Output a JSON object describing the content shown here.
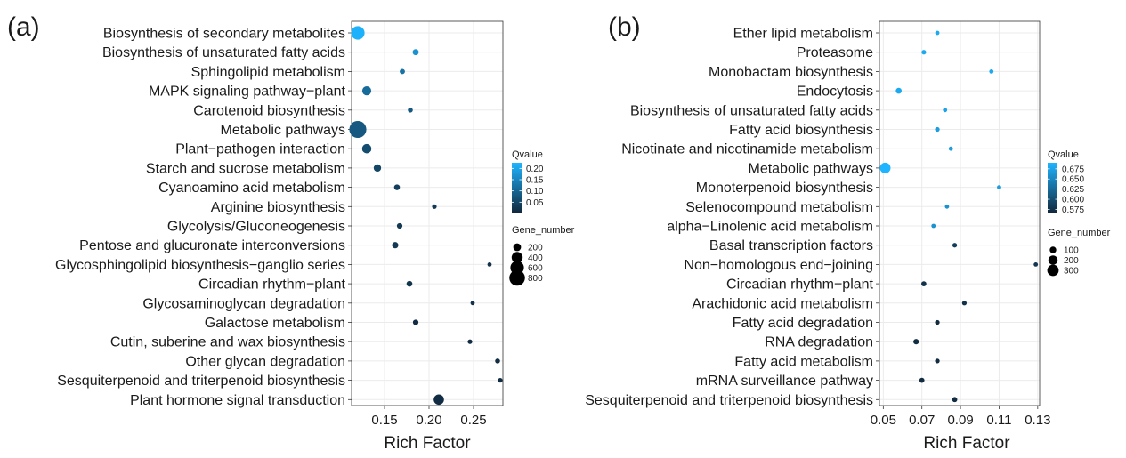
{
  "chart_data": [
    {
      "type": "scatter",
      "panel_label": "(a)",
      "xlabel": "Rich Factor",
      "xlim": [
        0.113,
        0.283
      ],
      "xticks": [
        0.15,
        0.2,
        0.25
      ],
      "xtick_labels": [
        "0.15",
        "0.20",
        "0.25"
      ],
      "categories": [
        "Biosynthesis of secondary metabolites",
        "Biosynthesis of unsaturated fatty acids",
        "Sphingolipid metabolism",
        "MAPK signaling pathway−plant",
        "Carotenoid biosynthesis",
        "Metabolic pathways",
        "Plant−pathogen interaction",
        "Starch and sucrose metabolism",
        "Cyanoamino acid metabolism",
        "Arginine biosynthesis",
        "Glycolysis/Gluconeogenesis",
        "Pentose and glucuronate interconversions",
        "Glycosphingolipid biosynthesis−ganglio series",
        "Circadian rhythm−plant",
        "Glycosaminoglycan degradation",
        "Galactose metabolism",
        "Cutin, suberine and wax biosynthesis",
        "Other glycan degradation",
        "Sesquiterpenoid and triterpenoid biosynthesis",
        "Plant hormone signal transduction"
      ],
      "rich_factor": [
        0.12,
        0.185,
        0.17,
        0.13,
        0.179,
        0.12,
        0.13,
        0.142,
        0.164,
        0.206,
        0.167,
        0.162,
        0.268,
        0.178,
        0.249,
        0.185,
        0.246,
        0.277,
        0.28,
        0.211
      ],
      "qvalue": [
        0.22,
        0.17,
        0.12,
        0.11,
        0.08,
        0.08,
        0.06,
        0.05,
        0.04,
        0.03,
        0.03,
        0.03,
        0.02,
        0.02,
        0.02,
        0.01,
        0.01,
        0.01,
        0.01,
        0.01
      ],
      "gene_number": [
        600,
        120,
        90,
        270,
        80,
        950,
        290,
        180,
        110,
        70,
        100,
        130,
        50,
        110,
        50,
        100,
        70,
        80,
        70,
        350
      ],
      "qvalue_legend": {
        "title": "Qvalue",
        "ticks": [
          0.2,
          0.15,
          0.1,
          0.05
        ],
        "tick_labels": [
          "0.20",
          "0.15",
          "0.10",
          "0.05"
        ],
        "range": [
          0.0,
          0.225
        ]
      },
      "size_legend": {
        "title": "Gene_number",
        "values": [
          200,
          400,
          600,
          800
        ],
        "labels": [
          "200",
          "400",
          "600",
          "800"
        ]
      }
    },
    {
      "type": "scatter",
      "panel_label": "(b)",
      "xlabel": "Rich Factor",
      "xlim": [
        0.048,
        0.131
      ],
      "xticks": [
        0.05,
        0.07,
        0.09,
        0.11,
        0.13
      ],
      "xtick_labels": [
        "0.05",
        "0.07",
        "0.09",
        "0.11",
        "0.13"
      ],
      "categories": [
        "Ether lipid metabolism",
        "Proteasome",
        "Monobactam biosynthesis",
        "Endocytosis",
        "Biosynthesis of unsaturated fatty acids",
        "Fatty acid biosynthesis",
        "Nicotinate and nicotinamide metabolism",
        "Metabolic pathways",
        "Monoterpenoid biosynthesis",
        "Selenocompound metabolism",
        "alpha−Linolenic acid metabolism",
        "Basal transcription factors",
        "Non−homologous end−joining",
        "Circadian rhythm−plant",
        "Arachidonic acid metabolism",
        "Fatty acid degradation",
        "RNA degradation",
        "Fatty acid metabolism",
        "mRNA surveillance pathway",
        "Sesquiterpenoid and triterpenoid biosynthesis"
      ],
      "rich_factor": [
        0.078,
        0.071,
        0.106,
        0.058,
        0.082,
        0.078,
        0.085,
        0.051,
        0.11,
        0.083,
        0.076,
        0.087,
        0.129,
        0.071,
        0.092,
        0.078,
        0.067,
        0.078,
        0.07,
        0.087
      ],
      "qvalue": [
        0.68,
        0.68,
        0.68,
        0.68,
        0.675,
        0.67,
        0.67,
        0.69,
        0.67,
        0.66,
        0.66,
        0.585,
        0.58,
        0.575,
        0.575,
        0.57,
        0.57,
        0.57,
        0.57,
        0.57
      ],
      "gene_number": [
        40,
        50,
        30,
        80,
        40,
        50,
        40,
        260,
        30,
        40,
        40,
        50,
        30,
        60,
        50,
        50,
        70,
        50,
        60,
        60
      ],
      "qvalue_legend": {
        "title": "Qvalue",
        "ticks": [
          0.675,
          0.65,
          0.625,
          0.6,
          0.575
        ],
        "tick_labels": [
          "0.675",
          "0.650",
          "0.625",
          "0.600",
          "0.575"
        ],
        "range": [
          0.565,
          0.69
        ]
      },
      "size_legend": {
        "title": "Gene_number",
        "values": [
          100,
          200,
          300
        ],
        "labels": [
          "100",
          "200",
          "300"
        ]
      }
    }
  ]
}
